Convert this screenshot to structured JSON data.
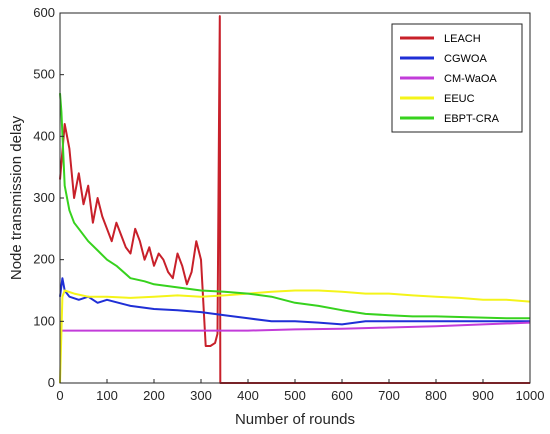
{
  "chart_data": {
    "type": "line",
    "title": "",
    "xlabel": "Number of rounds",
    "ylabel": "Node transmission delay",
    "xlim": [
      0,
      1000
    ],
    "ylim": [
      0,
      600
    ],
    "xticks": [
      0,
      100,
      200,
      300,
      400,
      500,
      600,
      700,
      800,
      900,
      1000
    ],
    "yticks": [
      0,
      100,
      200,
      300,
      400,
      500,
      600
    ],
    "grid": false,
    "legend_position": "top-right",
    "series": [
      {
        "name": "LEACH",
        "color": "#c8202a",
        "x": [
          0,
          10,
          20,
          30,
          40,
          50,
          60,
          70,
          80,
          90,
          100,
          110,
          120,
          130,
          140,
          150,
          160,
          170,
          180,
          190,
          200,
          210,
          220,
          230,
          240,
          250,
          260,
          270,
          280,
          290,
          300,
          310,
          320,
          330,
          335,
          338,
          340,
          341,
          350,
          400,
          500,
          600,
          700,
          800,
          900,
          1000
        ],
        "values": [
          330,
          420,
          380,
          300,
          340,
          290,
          320,
          260,
          300,
          270,
          250,
          230,
          260,
          240,
          220,
          210,
          250,
          230,
          200,
          220,
          190,
          210,
          200,
          180,
          170,
          210,
          190,
          160,
          180,
          230,
          200,
          60,
          60,
          65,
          80,
          400,
          595,
          0,
          0,
          0,
          0,
          0,
          0,
          0,
          0,
          0
        ]
      },
      {
        "name": "CGWOA",
        "color": "#1f2fd6",
        "x": [
          0,
          5,
          10,
          20,
          40,
          60,
          80,
          100,
          150,
          200,
          250,
          300,
          350,
          400,
          450,
          500,
          550,
          600,
          650,
          700,
          750,
          800,
          850,
          900,
          950,
          1000
        ],
        "values": [
          140,
          170,
          150,
          140,
          135,
          140,
          130,
          135,
          125,
          120,
          118,
          115,
          110,
          105,
          100,
          100,
          98,
          95,
          100,
          100,
          100,
          100,
          100,
          100,
          100,
          100
        ]
      },
      {
        "name": "CM-WaOA",
        "color": "#c23cd9",
        "x": [
          0,
          10,
          100,
          200,
          300,
          400,
          500,
          600,
          700,
          800,
          900,
          1000
        ],
        "values": [
          85,
          85,
          85,
          85,
          85,
          85,
          87,
          88,
          90,
          92,
          95,
          98
        ]
      },
      {
        "name": "EEUC",
        "color": "#f4f41a",
        "x": [
          0,
          5,
          10,
          30,
          60,
          100,
          150,
          200,
          250,
          300,
          350,
          400,
          450,
          500,
          550,
          600,
          650,
          700,
          750,
          800,
          850,
          900,
          950,
          1000
        ],
        "values": [
          0,
          140,
          150,
          145,
          140,
          140,
          138,
          140,
          142,
          140,
          142,
          145,
          148,
          150,
          150,
          148,
          145,
          145,
          142,
          140,
          138,
          135,
          135,
          132
        ]
      },
      {
        "name": "EBPT-CRA",
        "color": "#37d21e",
        "x": [
          0,
          3,
          10,
          20,
          30,
          40,
          60,
          80,
          100,
          120,
          150,
          180,
          200,
          250,
          300,
          350,
          400,
          450,
          500,
          550,
          600,
          650,
          700,
          750,
          800,
          850,
          900,
          950,
          1000
        ],
        "values": [
          470,
          440,
          320,
          280,
          260,
          250,
          230,
          215,
          200,
          190,
          170,
          165,
          160,
          155,
          150,
          148,
          145,
          140,
          130,
          125,
          118,
          112,
          110,
          108,
          108,
          107,
          106,
          105,
          105
        ]
      }
    ]
  }
}
